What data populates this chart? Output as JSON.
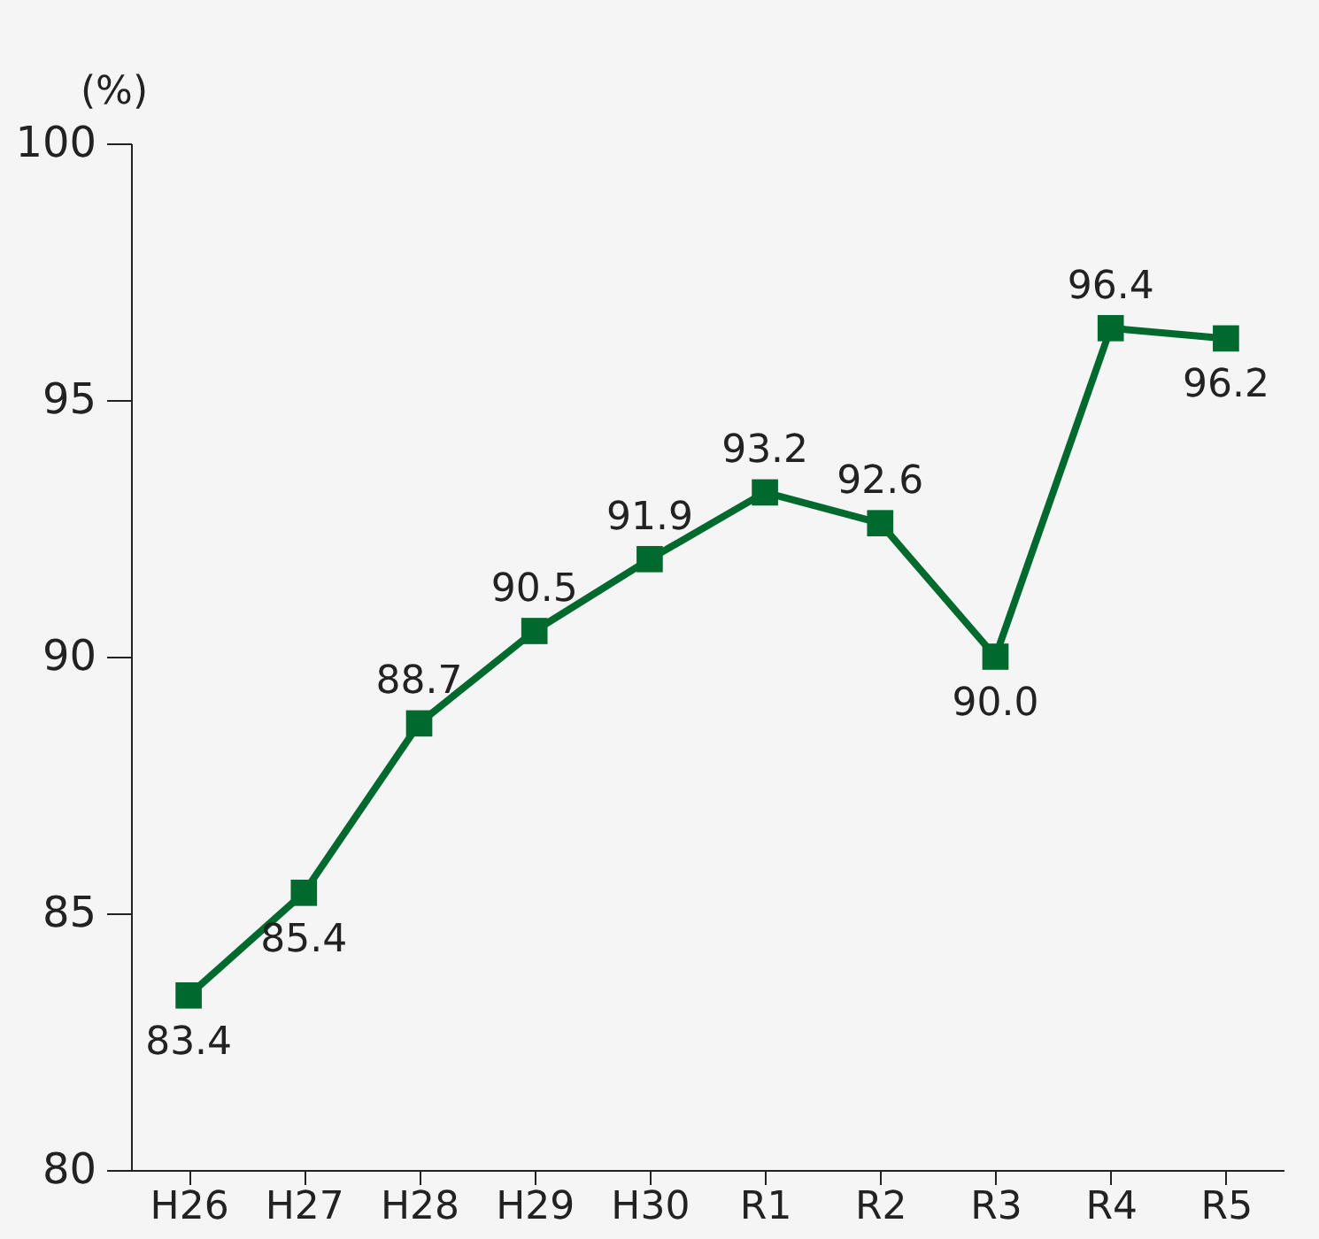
{
  "chart_data": {
    "type": "line",
    "ylabel": "(%)",
    "categories": [
      "H26",
      "H27",
      "H28",
      "H29",
      "H30",
      "R1",
      "R2",
      "R3",
      "R4",
      "R5"
    ],
    "series": [
      {
        "color": "#006a2e",
        "values": [
          83.4,
          85.4,
          88.7,
          90.5,
          91.9,
          93.2,
          92.6,
          90.0,
          96.4,
          96.2
        ],
        "value_labels": [
          "83.4",
          "85.4",
          "88.7",
          "90.5",
          "91.9",
          "93.2",
          "92.6",
          "90.0",
          "96.4",
          "96.2"
        ]
      }
    ],
    "ylim": [
      80,
      100
    ],
    "yticks": [
      80,
      85,
      90,
      95,
      100
    ],
    "grid": false,
    "marker": "square",
    "line_style": "solid"
  }
}
